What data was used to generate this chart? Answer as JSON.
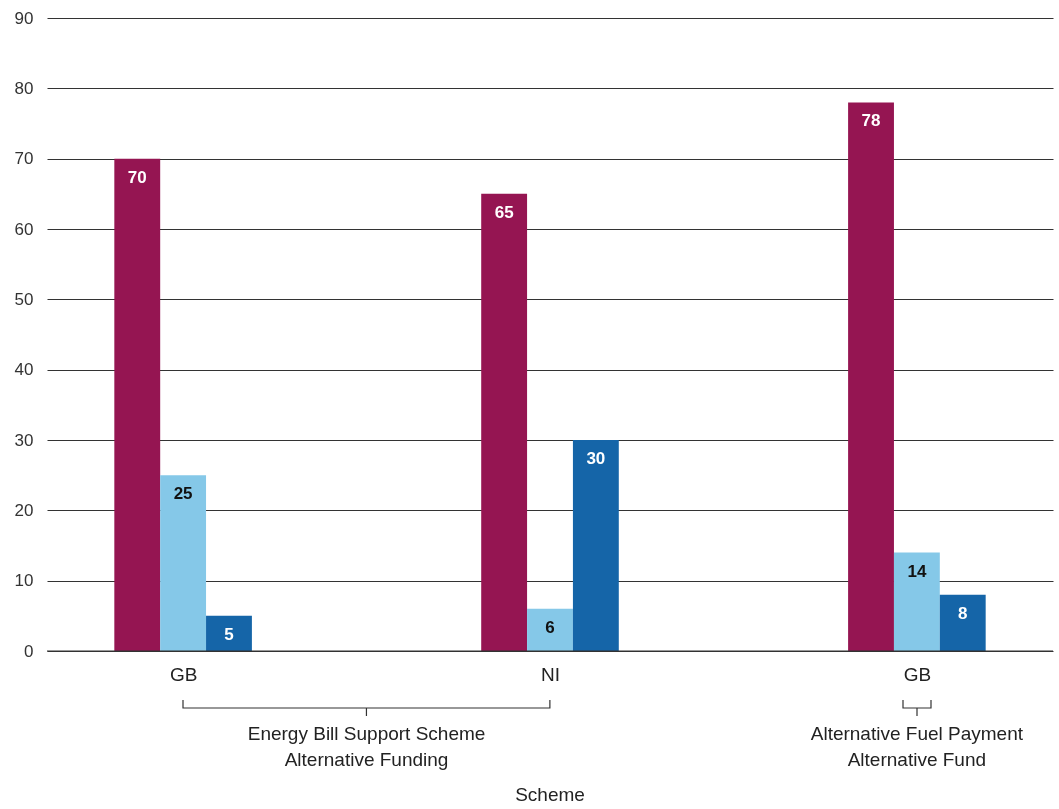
{
  "chart_data": {
    "type": "bar",
    "categories": [
      "GB",
      "NI",
      "GB"
    ],
    "series": [
      {
        "color": "#951552",
        "values": [
          70,
          65,
          78
        ]
      },
      {
        "color": "#85c8e8",
        "values": [
          25,
          6,
          14
        ]
      },
      {
        "color": "#1565a8",
        "values": [
          5,
          30,
          8
        ]
      }
    ],
    "ylim": [
      0,
      90
    ],
    "yticks": [
      0,
      10,
      20,
      30,
      40,
      50,
      60,
      70,
      80,
      90
    ],
    "grid": "y",
    "data_labels": true,
    "annotations": [
      "Energy Bill Support Scheme Alternative Funding",
      "Alternative Fuel Payment Alternative Fund",
      "Scheme"
    ]
  }
}
